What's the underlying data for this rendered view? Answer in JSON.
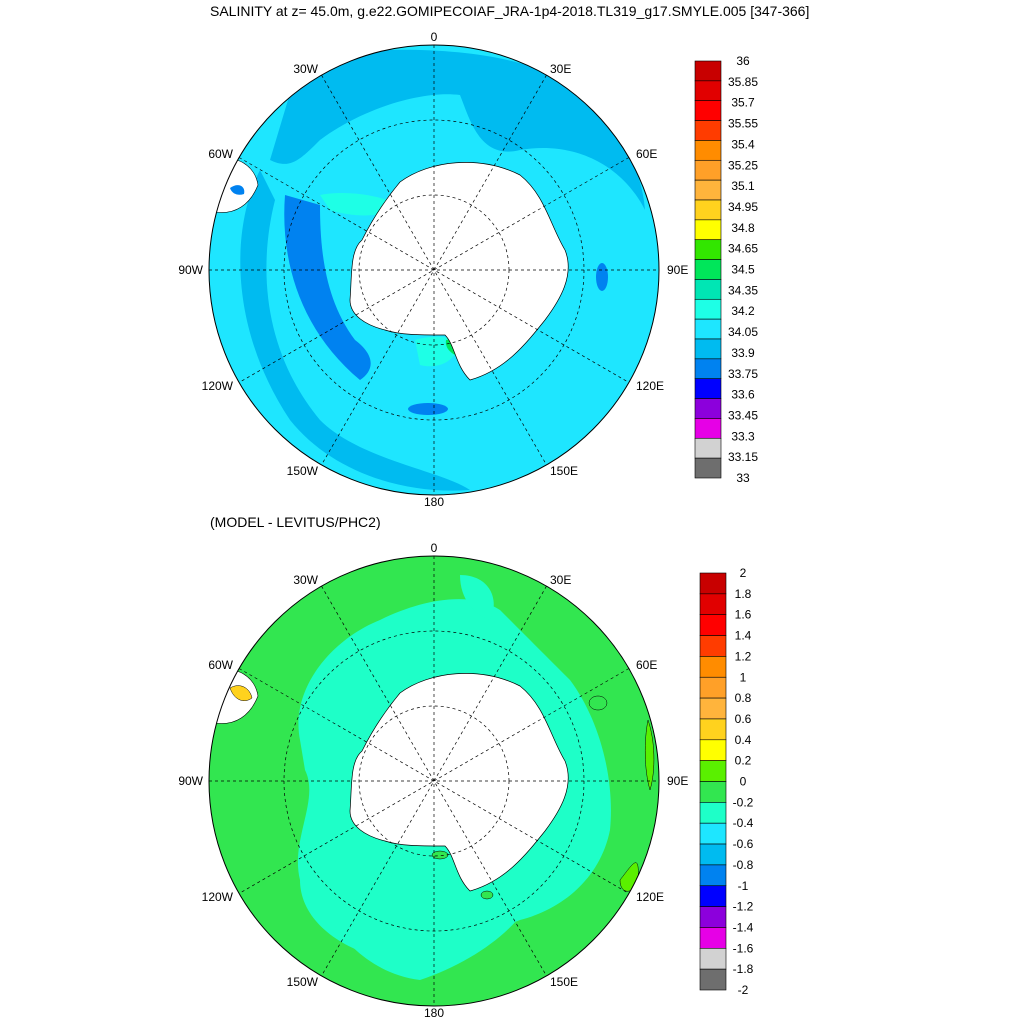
{
  "top_map": {
    "title": "SALINITY at z=  45.0m, g.e22.GOMIPECOIAF_JRA-1p4-2018.TL319_g17.SMYLE.005 [347-366]",
    "longitude_labels": [
      "0",
      "30E",
      "60E",
      "90E",
      "120E",
      "150E",
      "180",
      "150W",
      "120W",
      "90W",
      "60W",
      "30W"
    ],
    "colorbar": {
      "labels": [
        "36",
        "35.85",
        "35.7",
        "35.55",
        "35.4",
        "35.25",
        "35.1",
        "34.95",
        "34.8",
        "34.65",
        "34.5",
        "34.35",
        "34.2",
        "34.05",
        "33.9",
        "33.75",
        "33.6",
        "33.45",
        "33.3",
        "33.15",
        "33"
      ],
      "colors": [
        "#c80000",
        "#e10000",
        "#ff0000",
        "#ff3c00",
        "#ff8c00",
        "#ffa028",
        "#ffb43c",
        "#ffd21e",
        "#ffff00",
        "#32e600",
        "#00e65a",
        "#00e6b4",
        "#1effe6",
        "#1ee6ff",
        "#00bbf0",
        "#0082f0",
        "#0000ff",
        "#8c00dc",
        "#e600e6",
        "#d2d2d2",
        "#6e6e6e"
      ]
    }
  },
  "bottom_map": {
    "title": "(MODEL - LEVITUS/PHC2)",
    "longitude_labels": [
      "0",
      "30E",
      "60E",
      "90E",
      "120E",
      "150E",
      "180",
      "150W",
      "120W",
      "90W",
      "60W",
      "30W"
    ],
    "colorbar": {
      "labels": [
        "2",
        "1.8",
        "1.6",
        "1.4",
        "1.2",
        "1",
        "0.8",
        "0.6",
        "0.4",
        "0.2",
        "0",
        "-0.2",
        "-0.4",
        "-0.6",
        "-0.8",
        "-1",
        "-1.2",
        "-1.4",
        "-1.6",
        "-1.8",
        "-2"
      ],
      "colors": [
        "#c80000",
        "#e10000",
        "#ff0000",
        "#ff3c00",
        "#ff8c00",
        "#ffa028",
        "#ffb43c",
        "#ffd21e",
        "#ffff00",
        "#5af000",
        "#32e650",
        "#1effc8",
        "#1ee6ff",
        "#00bbf0",
        "#0082f0",
        "#0000ff",
        "#8c00dc",
        "#e600e6",
        "#d2d2d2",
        "#6e6e6e"
      ]
    }
  }
}
